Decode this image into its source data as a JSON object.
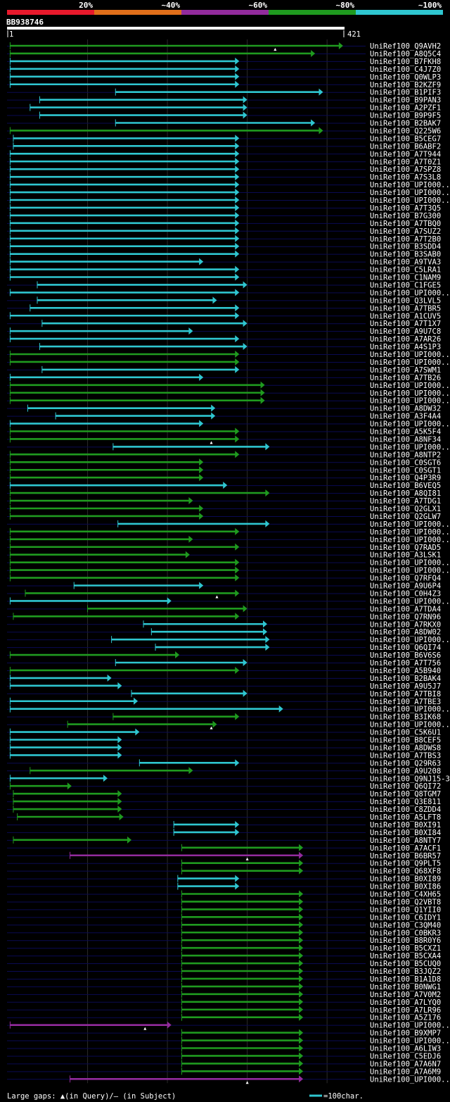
{
  "legend": {
    "bins": [
      {
        "label": "20%",
        "color": "#e8192c"
      },
      {
        "label": "~40%",
        "color": "#e06f1a"
      },
      {
        "label": "~60%",
        "color": "#922b9c"
      },
      {
        "label": "~80%",
        "color": "#1f9a1f"
      },
      {
        "label": "~100%",
        "color": "#2fc6d0"
      }
    ]
  },
  "query": {
    "name": "BB938746",
    "start": "1",
    "end": "421",
    "length": 421
  },
  "footer": {
    "gaps_text": "Large gaps: ▲(in Query)/– (in Subject)",
    "scale_text": "=100char."
  },
  "chart_data": {
    "type": "alignment-overview",
    "title": "BB938746",
    "x_range": [
      1,
      421
    ],
    "gridlines": [
      100,
      200,
      300,
      400
    ],
    "hits": [
      {
        "name": "UniRef100_Q9AVH2",
        "s": 3,
        "e": 420,
        "c": "g",
        "m": 335
      },
      {
        "name": "UniRef100_A8Q5C4",
        "s": 3,
        "e": 385,
        "c": "g"
      },
      {
        "name": "UniRef100_B7FKH8",
        "s": 3,
        "e": 290,
        "c": "c"
      },
      {
        "name": "UniRef100_C4J7Z0",
        "s": 3,
        "e": 290,
        "c": "c"
      },
      {
        "name": "UniRef100_Q0WLP3",
        "s": 3,
        "e": 290,
        "c": "c"
      },
      {
        "name": "UniRef100_B2KZF9",
        "s": 3,
        "e": 290,
        "c": "c"
      },
      {
        "name": "UniRef100_B1PIF3",
        "s": 135,
        "e": 395,
        "c": "c"
      },
      {
        "name": "UniRef100_B9PAN3",
        "s": 40,
        "e": 300,
        "c": "c"
      },
      {
        "name": "UniRef100_A2PZF1",
        "s": 28,
        "e": 300,
        "c": "c"
      },
      {
        "name": "UniRef100_B9P9F5",
        "s": 40,
        "e": 300,
        "c": "c"
      },
      {
        "name": "UniRef100_B2BAK7",
        "s": 135,
        "e": 385,
        "c": "c"
      },
      {
        "name": "UniRef100_Q225W6",
        "s": 3,
        "e": 395,
        "c": "g"
      },
      {
        "name": "UniRef100_B5CEG7",
        "s": 7,
        "e": 290,
        "c": "c"
      },
      {
        "name": "UniRef100_B6ABF2",
        "s": 7,
        "e": 290,
        "c": "c"
      },
      {
        "name": "UniRef100_A7T944",
        "s": 3,
        "e": 290,
        "c": "c"
      },
      {
        "name": "UniRef100_A7T0Z1",
        "s": 3,
        "e": 290,
        "c": "c"
      },
      {
        "name": "UniRef100_A7SPZ8",
        "s": 3,
        "e": 290,
        "c": "c"
      },
      {
        "name": "UniRef100_A7S3L8",
        "s": 3,
        "e": 290,
        "c": "c"
      },
      {
        "name": "UniRef100_UPI000..",
        "s": 3,
        "e": 290,
        "c": "c"
      },
      {
        "name": "UniRef100_UPI000..",
        "s": 3,
        "e": 290,
        "c": "c"
      },
      {
        "name": "UniRef100_UPI000..",
        "s": 3,
        "e": 290,
        "c": "c"
      },
      {
        "name": "UniRef100_A7T3Q5",
        "s": 3,
        "e": 290,
        "c": "c"
      },
      {
        "name": "UniRef100_B7G300",
        "s": 3,
        "e": 290,
        "c": "c"
      },
      {
        "name": "UniRef100_A7TBQ0",
        "s": 3,
        "e": 290,
        "c": "c"
      },
      {
        "name": "UniRef100_A7SUZ2",
        "s": 3,
        "e": 290,
        "c": "c"
      },
      {
        "name": "UniRef100_A7T2B0",
        "s": 3,
        "e": 290,
        "c": "c"
      },
      {
        "name": "UniRef100_B3SDD4",
        "s": 3,
        "e": 290,
        "c": "c"
      },
      {
        "name": "UniRef100_B3SAB0",
        "s": 3,
        "e": 290,
        "c": "c"
      },
      {
        "name": "UniRef100_A9TVA3",
        "s": 3,
        "e": 245,
        "c": "c"
      },
      {
        "name": "UniRef100_C5LRA1",
        "s": 3,
        "e": 290,
        "c": "c"
      },
      {
        "name": "UniRef100_C1NAM9",
        "s": 3,
        "e": 290,
        "c": "c"
      },
      {
        "name": "UniRef100_C1FGE5",
        "s": 37,
        "e": 300,
        "c": "c"
      },
      {
        "name": "UniRef100_UPI000..",
        "s": 3,
        "e": 290,
        "c": "c"
      },
      {
        "name": "UniRef100_Q3LVL5",
        "s": 37,
        "e": 262,
        "c": "c"
      },
      {
        "name": "UniRef100_A7TBR5",
        "s": 28,
        "e": 290,
        "c": "c"
      },
      {
        "name": "UniRef100_A1CUV5",
        "s": 3,
        "e": 290,
        "c": "c"
      },
      {
        "name": "UniRef100_A7T1X7",
        "s": 43,
        "e": 300,
        "c": "c"
      },
      {
        "name": "UniRef100_A9U7C8",
        "s": 3,
        "e": 232,
        "c": "c"
      },
      {
        "name": "UniRef100_A7AR26",
        "s": 3,
        "e": 290,
        "c": "c"
      },
      {
        "name": "UniRef100_A4S1P3",
        "s": 40,
        "e": 300,
        "c": "c"
      },
      {
        "name": "UniRef100_UPI000..",
        "s": 3,
        "e": 290,
        "c": "g"
      },
      {
        "name": "UniRef100_UPI000..",
        "s": 3,
        "e": 290,
        "c": "g"
      },
      {
        "name": "UniRef100_A7SWM1",
        "s": 43,
        "e": 290,
        "c": "c"
      },
      {
        "name": "UniRef100_A7TB26",
        "s": 3,
        "e": 245,
        "c": "c"
      },
      {
        "name": "UniRef100_UPI000..",
        "s": 3,
        "e": 322,
        "c": "g"
      },
      {
        "name": "UniRef100_UPI000..",
        "s": 3,
        "e": 322,
        "c": "g"
      },
      {
        "name": "UniRef100_UPI000..",
        "s": 3,
        "e": 322,
        "c": "g"
      },
      {
        "name": "UniRef100_A8DW32",
        "s": 25,
        "e": 260,
        "c": "c"
      },
      {
        "name": "UniRef100_A3F4A4",
        "s": 60,
        "e": 260,
        "c": "c"
      },
      {
        "name": "UniRef100_UPI000..",
        "s": 3,
        "e": 245,
        "c": "c"
      },
      {
        "name": "UniRef100_A5K5F4",
        "s": 3,
        "e": 290,
        "c": "g"
      },
      {
        "name": "UniRef100_A8NF34",
        "s": 3,
        "e": 290,
        "c": "g",
        "m": 255
      },
      {
        "name": "UniRef100_UPI000..",
        "s": 132,
        "e": 328,
        "c": "c"
      },
      {
        "name": "UniRef100_A8NTP2",
        "s": 3,
        "e": 290,
        "c": "g"
      },
      {
        "name": "UniRef100_C0SGT6",
        "s": 3,
        "e": 245,
        "c": "g"
      },
      {
        "name": "UniRef100_C0SGT1",
        "s": 3,
        "e": 245,
        "c": "g"
      },
      {
        "name": "UniRef100_Q4P3R9",
        "s": 3,
        "e": 245,
        "c": "g"
      },
      {
        "name": "UniRef100_B6VEQ5",
        "s": 3,
        "e": 275,
        "c": "c"
      },
      {
        "name": "UniRef100_A8QI81",
        "s": 3,
        "e": 328,
        "c": "g"
      },
      {
        "name": "UniRef100_A7TDG1",
        "s": 3,
        "e": 232,
        "c": "g"
      },
      {
        "name": "UniRef100_Q2GLX1",
        "s": 3,
        "e": 245,
        "c": "g"
      },
      {
        "name": "UniRef100_Q2GLW7",
        "s": 3,
        "e": 245,
        "c": "g"
      },
      {
        "name": "UniRef100_UPI000..",
        "s": 138,
        "e": 328,
        "c": "c"
      },
      {
        "name": "UniRef100_UPI000..",
        "s": 3,
        "e": 290,
        "c": "g"
      },
      {
        "name": "UniRef100_UPI000..",
        "s": 3,
        "e": 232,
        "c": "g"
      },
      {
        "name": "UniRef100_Q7RAD5",
        "s": 3,
        "e": 290,
        "c": "g"
      },
      {
        "name": "UniRef100_A3LSK1",
        "s": 3,
        "e": 228,
        "c": "g"
      },
      {
        "name": "UniRef100_UPI000..",
        "s": 3,
        "e": 290,
        "c": "g"
      },
      {
        "name": "UniRef100_UPI000..",
        "s": 3,
        "e": 290,
        "c": "g"
      },
      {
        "name": "UniRef100_Q7RFQ4",
        "s": 3,
        "e": 290,
        "c": "g"
      },
      {
        "name": "UniRef100_A9U6P4",
        "s": 83,
        "e": 245,
        "c": "c"
      },
      {
        "name": "UniRef100_C0H4Z3",
        "s": 22,
        "e": 290,
        "c": "g",
        "m": 262
      },
      {
        "name": "UniRef100_UPI000..",
        "s": 3,
        "e": 205,
        "c": "c"
      },
      {
        "name": "UniRef100_A7TDA4",
        "s": 100,
        "e": 300,
        "c": "g"
      },
      {
        "name": "UniRef100_Q7RN96",
        "s": 7,
        "e": 290,
        "c": "g"
      },
      {
        "name": "UniRef100_A7RKX0",
        "s": 170,
        "e": 325,
        "c": "c"
      },
      {
        "name": "UniRef100_A8DW02",
        "s": 180,
        "e": 325,
        "c": "c"
      },
      {
        "name": "UniRef100_UPI000..",
        "s": 130,
        "e": 328,
        "c": "c"
      },
      {
        "name": "UniRef100_Q6QI74",
        "s": 185,
        "e": 328,
        "c": "c"
      },
      {
        "name": "UniRef100_B6V6S6",
        "s": 3,
        "e": 215,
        "c": "g"
      },
      {
        "name": "UniRef100_A7T756",
        "s": 135,
        "e": 300,
        "c": "c"
      },
      {
        "name": "UniRef100_A5B940",
        "s": 3,
        "e": 290,
        "c": "g"
      },
      {
        "name": "UniRef100_B2BAK4",
        "s": 3,
        "e": 130,
        "c": "c"
      },
      {
        "name": "UniRef100_A9U5J7",
        "s": 3,
        "e": 143,
        "c": "c"
      },
      {
        "name": "UniRef100_A7TBI8",
        "s": 155,
        "e": 300,
        "c": "c"
      },
      {
        "name": "UniRef100_A7TBE3",
        "s": 3,
        "e": 163,
        "c": "c"
      },
      {
        "name": "UniRef100_UPI000..",
        "s": 3,
        "e": 345,
        "c": "c"
      },
      {
        "name": "UniRef100_B3IK68",
        "s": 132,
        "e": 290,
        "c": "g"
      },
      {
        "name": "UniRef100_UPI000..",
        "s": 75,
        "e": 262,
        "c": "g",
        "m": 255
      },
      {
        "name": "UniRef100_C5K6U1",
        "s": 3,
        "e": 165,
        "c": "c"
      },
      {
        "name": "UniRef100_B8CEF5",
        "s": 3,
        "e": 143,
        "c": "c"
      },
      {
        "name": "UniRef100_A8DWS8",
        "s": 3,
        "e": 143,
        "c": "c"
      },
      {
        "name": "UniRef100_A7TBS3",
        "s": 3,
        "e": 143,
        "c": "c"
      },
      {
        "name": "UniRef100_Q29R63",
        "s": 165,
        "e": 290,
        "c": "c"
      },
      {
        "name": "UniRef100_A9U208",
        "s": 28,
        "e": 232,
        "c": "g"
      },
      {
        "name": "UniRef100_Q9NJ15-3",
        "s": 3,
        "e": 125,
        "c": "c"
      },
      {
        "name": "UniRef100_Q6QI72",
        "s": 3,
        "e": 80,
        "c": "g"
      },
      {
        "name": "UniRef100_Q8TGM7",
        "s": 7,
        "e": 143,
        "c": "g"
      },
      {
        "name": "UniRef100_Q3E811",
        "s": 7,
        "e": 143,
        "c": "g"
      },
      {
        "name": "UniRef100_C8ZDD4",
        "s": 7,
        "e": 143,
        "c": "g"
      },
      {
        "name": "UniRef100_A5LFT8",
        "s": 12,
        "e": 145,
        "c": "g"
      },
      {
        "name": "UniRef100_B0XI91",
        "s": 208,
        "e": 290,
        "c": "c"
      },
      {
        "name": "UniRef100_B0XI84",
        "s": 208,
        "e": 290,
        "c": "c"
      },
      {
        "name": "UniRef100_A8NTY7",
        "s": 7,
        "e": 155,
        "c": "g"
      },
      {
        "name": "UniRef100_A7ACF1",
        "s": 218,
        "e": 370,
        "c": "g"
      },
      {
        "name": "UniRef100_B6BR57",
        "s": 78,
        "e": 370,
        "c": "p",
        "m": 300
      },
      {
        "name": "UniRef100_Q9PLT5",
        "s": 218,
        "e": 370,
        "c": "g"
      },
      {
        "name": "UniRef100_Q68XF8",
        "s": 218,
        "e": 370,
        "c": "g"
      },
      {
        "name": "UniRef100_B0XI89",
        "s": 213,
        "e": 290,
        "c": "c"
      },
      {
        "name": "UniRef100_B0XI86",
        "s": 213,
        "e": 290,
        "c": "c"
      },
      {
        "name": "UniRef100_C4XH65",
        "s": 218,
        "e": 370,
        "c": "g"
      },
      {
        "name": "UniRef100_Q2VBT8",
        "s": 218,
        "e": 370,
        "c": "g"
      },
      {
        "name": "UniRef100_Q1YII0",
        "s": 218,
        "e": 370,
        "c": "g"
      },
      {
        "name": "UniRef100_C6IDY1",
        "s": 218,
        "e": 370,
        "c": "g"
      },
      {
        "name": "UniRef100_C3QM40",
        "s": 218,
        "e": 370,
        "c": "g"
      },
      {
        "name": "UniRef100_C0BKR3",
        "s": 218,
        "e": 370,
        "c": "g"
      },
      {
        "name": "UniRef100_B8R0Y6",
        "s": 218,
        "e": 370,
        "c": "g"
      },
      {
        "name": "UniRef100_B5CXZ1",
        "s": 218,
        "e": 370,
        "c": "g"
      },
      {
        "name": "UniRef100_B5CXA4",
        "s": 218,
        "e": 370,
        "c": "g"
      },
      {
        "name": "UniRef100_B5CUQ0",
        "s": 218,
        "e": 370,
        "c": "g"
      },
      {
        "name": "UniRef100_B3JQZ2",
        "s": 218,
        "e": 370,
        "c": "g"
      },
      {
        "name": "UniRef100_B1A1D8",
        "s": 218,
        "e": 370,
        "c": "g"
      },
      {
        "name": "UniRef100_B0NWG1",
        "s": 218,
        "e": 370,
        "c": "g"
      },
      {
        "name": "UniRef100_A7V0M2",
        "s": 218,
        "e": 370,
        "c": "g"
      },
      {
        "name": "UniRef100_A7LYQ0",
        "s": 218,
        "e": 370,
        "c": "g"
      },
      {
        "name": "UniRef100_A7LR96",
        "s": 218,
        "e": 370,
        "c": "g"
      },
      {
        "name": "UniRef100_A5Z176",
        "s": 218,
        "e": 370,
        "c": "g"
      },
      {
        "name": "UniRef100_UPI000..",
        "s": 3,
        "e": 205,
        "c": "p",
        "m": 172
      },
      {
        "name": "UniRef100_B9XMP7",
        "s": 218,
        "e": 370,
        "c": "g"
      },
      {
        "name": "UniRef100_UPI000..",
        "s": 218,
        "e": 370,
        "c": "g"
      },
      {
        "name": "UniRef100_A6LIW3",
        "s": 218,
        "e": 370,
        "c": "g"
      },
      {
        "name": "UniRef100_C5EDJ6",
        "s": 218,
        "e": 370,
        "c": "g"
      },
      {
        "name": "UniRef100_A7A6N7",
        "s": 218,
        "e": 370,
        "c": "g"
      },
      {
        "name": "UniRef100_A7A6M9",
        "s": 218,
        "e": 370,
        "c": "g"
      },
      {
        "name": "UniRef100_UPI000..",
        "s": 78,
        "e": 370,
        "c": "p",
        "m": 300
      }
    ]
  },
  "colors": {
    "c": "#2fc6d0",
    "g": "#1f9a1f",
    "p": "#922b9c",
    "row_line": "#0a0a52",
    "grid": "#2a2a2a"
  }
}
